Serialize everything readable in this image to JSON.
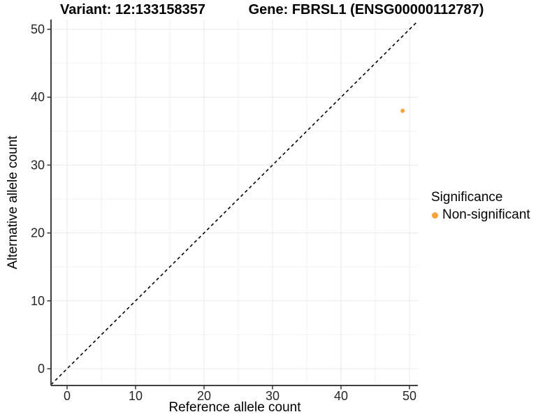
{
  "titles": {
    "variant": "Variant: 12:133158357",
    "gene": "Gene: FBRSL1 (ENSG00000112787)"
  },
  "axes": {
    "x": {
      "label": "Reference allele count",
      "ticks": [
        0,
        10,
        20,
        30,
        40,
        50
      ]
    },
    "y": {
      "label": "Alternative allele count",
      "ticks": [
        0,
        10,
        20,
        30,
        40,
        50
      ]
    }
  },
  "legend": {
    "title": "Significance",
    "items": [
      {
        "label": "Non-significant",
        "color": "#FAA33C"
      }
    ]
  },
  "colors": {
    "point": "#FAA33C",
    "axis_line": "#404040",
    "tick_label": "#262626",
    "grid_major": "#EAEAEA",
    "grid_minor": "#F2F2F2",
    "reference_line": "#000000"
  },
  "chart_data": {
    "type": "scatter",
    "title_left": "Variant: 12:133158357",
    "title_right": "Gene: FBRSL1 (ENSG00000112787)",
    "xlabel": "Reference allele count",
    "ylabel": "Alternative allele count",
    "xlim": [
      0,
      50
    ],
    "ylim": [
      0,
      50
    ],
    "x_ticks": [
      0,
      10,
      20,
      30,
      40,
      50
    ],
    "y_ticks": [
      0,
      10,
      20,
      30,
      40,
      50
    ],
    "grid": "major+minor",
    "legend_position": "right",
    "legend_title": "Significance",
    "series": [
      {
        "name": "Non-significant",
        "color": "#FAA33C",
        "points": [
          {
            "x": 49,
            "y": 38
          }
        ]
      }
    ],
    "reference_line": {
      "type": "identity",
      "slope": 1,
      "intercept": 0,
      "style": "dashed",
      "color": "#000000"
    }
  }
}
